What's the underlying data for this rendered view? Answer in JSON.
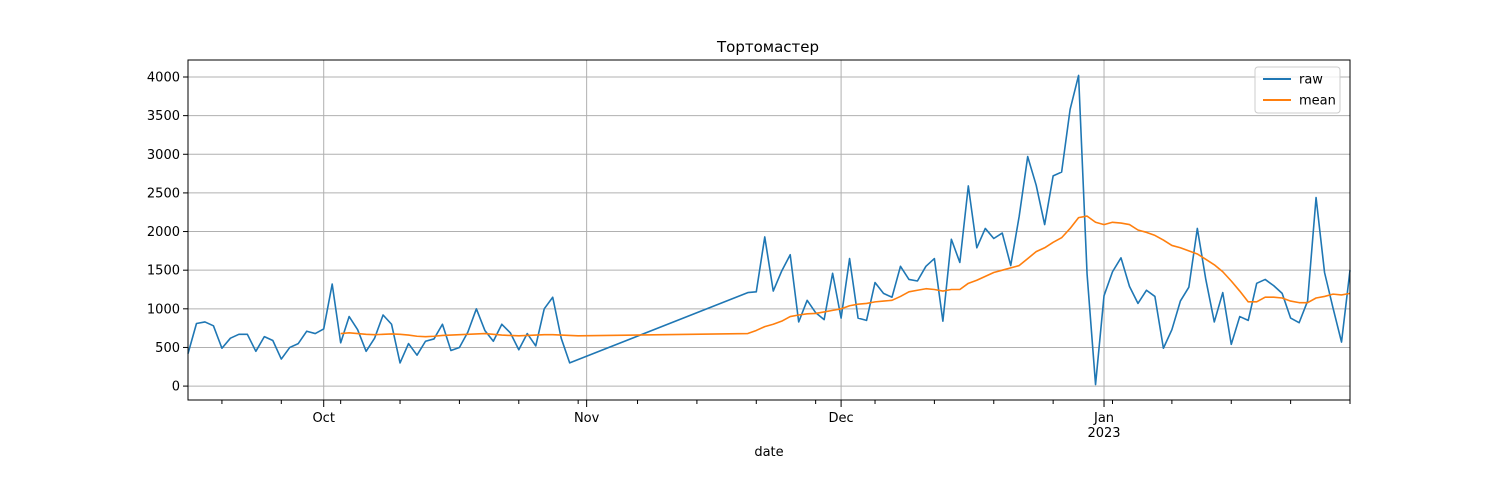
{
  "chart_data": {
    "type": "line",
    "title": "Тортомастер",
    "xlabel": "date",
    "ylabel": "",
    "x_range": [
      "2022-09-15",
      "2023-01-30"
    ],
    "ylim": [
      -180,
      4220
    ],
    "y_ticks": [
      0,
      500,
      1000,
      1500,
      2000,
      2500,
      3000,
      3500,
      4000
    ],
    "x_major_ticks": [
      {
        "date": "2022-10-01",
        "label": "Oct"
      },
      {
        "date": "2022-11-01",
        "label": "Nov"
      },
      {
        "date": "2022-12-01",
        "label": "Dec"
      },
      {
        "date": "2023-01-01",
        "label": "Jan",
        "sublabel": "2023"
      }
    ],
    "x_minor_ticks": [
      "2022-09-19",
      "2022-09-26",
      "2022-10-03",
      "2022-10-10",
      "2022-10-17",
      "2022-10-24",
      "2022-10-31",
      "2022-11-07",
      "2022-11-14",
      "2022-11-21",
      "2022-11-28",
      "2022-12-05",
      "2022-12-12",
      "2022-12-19",
      "2022-12-26",
      "2023-01-02",
      "2023-01-09",
      "2023-01-16",
      "2023-01-23",
      "2023-01-30"
    ],
    "grid": true,
    "legend_position": "top-right",
    "colors": {
      "raw": "#1f77b4",
      "mean": "#ff7f0e"
    },
    "series": [
      {
        "name": "raw",
        "points": [
          [
            "2022-09-15",
            420
          ],
          [
            "2022-09-16",
            810
          ],
          [
            "2022-09-17",
            830
          ],
          [
            "2022-09-18",
            780
          ],
          [
            "2022-09-19",
            490
          ],
          [
            "2022-09-20",
            620
          ],
          [
            "2022-09-21",
            670
          ],
          [
            "2022-09-22",
            670
          ],
          [
            "2022-09-23",
            450
          ],
          [
            "2022-09-24",
            640
          ],
          [
            "2022-09-25",
            590
          ],
          [
            "2022-09-26",
            350
          ],
          [
            "2022-09-27",
            500
          ],
          [
            "2022-09-28",
            550
          ],
          [
            "2022-09-29",
            710
          ],
          [
            "2022-09-30",
            680
          ],
          [
            "2022-10-01",
            740
          ],
          [
            "2022-10-02",
            1320
          ],
          [
            "2022-10-03",
            560
          ],
          [
            "2022-10-04",
            900
          ],
          [
            "2022-10-05",
            730
          ],
          [
            "2022-10-06",
            450
          ],
          [
            "2022-10-07",
            620
          ],
          [
            "2022-10-08",
            920
          ],
          [
            "2022-10-09",
            800
          ],
          [
            "2022-10-10",
            300
          ],
          [
            "2022-10-11",
            550
          ],
          [
            "2022-10-12",
            400
          ],
          [
            "2022-10-13",
            580
          ],
          [
            "2022-10-14",
            610
          ],
          [
            "2022-10-15",
            800
          ],
          [
            "2022-10-16",
            460
          ],
          [
            "2022-10-17",
            500
          ],
          [
            "2022-10-18",
            700
          ],
          [
            "2022-10-19",
            1000
          ],
          [
            "2022-10-20",
            720
          ],
          [
            "2022-10-21",
            580
          ],
          [
            "2022-10-22",
            800
          ],
          [
            "2022-10-23",
            690
          ],
          [
            "2022-10-24",
            470
          ],
          [
            "2022-10-25",
            680
          ],
          [
            "2022-10-26",
            520
          ],
          [
            "2022-10-27",
            1000
          ],
          [
            "2022-10-28",
            1150
          ],
          [
            "2022-10-29",
            620
          ],
          [
            "2022-10-30",
            300
          ],
          [
            "2022-11-20",
            1210
          ],
          [
            "2022-11-21",
            1220
          ],
          [
            "2022-11-22",
            1930
          ],
          [
            "2022-11-23",
            1230
          ],
          [
            "2022-11-24",
            1490
          ],
          [
            "2022-11-25",
            1700
          ],
          [
            "2022-11-26",
            830
          ],
          [
            "2022-11-27",
            1110
          ],
          [
            "2022-11-28",
            950
          ],
          [
            "2022-11-29",
            860
          ],
          [
            "2022-11-30",
            1460
          ],
          [
            "2022-12-01",
            880
          ],
          [
            "2022-12-02",
            1650
          ],
          [
            "2022-12-03",
            880
          ],
          [
            "2022-12-04",
            850
          ],
          [
            "2022-12-05",
            1340
          ],
          [
            "2022-12-06",
            1200
          ],
          [
            "2022-12-07",
            1150
          ],
          [
            "2022-12-08",
            1550
          ],
          [
            "2022-12-09",
            1380
          ],
          [
            "2022-12-10",
            1360
          ],
          [
            "2022-12-11",
            1550
          ],
          [
            "2022-12-12",
            1650
          ],
          [
            "2022-12-13",
            840
          ],
          [
            "2022-12-14",
            1900
          ],
          [
            "2022-12-15",
            1600
          ],
          [
            "2022-12-16",
            2590
          ],
          [
            "2022-12-17",
            1790
          ],
          [
            "2022-12-18",
            2040
          ],
          [
            "2022-12-19",
            1910
          ],
          [
            "2022-12-20",
            1980
          ],
          [
            "2022-12-21",
            1560
          ],
          [
            "2022-12-22",
            2200
          ],
          [
            "2022-12-23",
            2970
          ],
          [
            "2022-12-24",
            2600
          ],
          [
            "2022-12-25",
            2090
          ],
          [
            "2022-12-26",
            2720
          ],
          [
            "2022-12-27",
            2770
          ],
          [
            "2022-12-28",
            3580
          ],
          [
            "2022-12-29",
            4020
          ],
          [
            "2022-12-30",
            1450
          ],
          [
            "2022-12-31",
            20
          ],
          [
            "2023-01-01",
            1170
          ],
          [
            "2023-01-02",
            1480
          ],
          [
            "2023-01-03",
            1660
          ],
          [
            "2023-01-04",
            1290
          ],
          [
            "2023-01-05",
            1070
          ],
          [
            "2023-01-06",
            1240
          ],
          [
            "2023-01-07",
            1160
          ],
          [
            "2023-01-08",
            490
          ],
          [
            "2023-01-09",
            730
          ],
          [
            "2023-01-10",
            1100
          ],
          [
            "2023-01-11",
            1280
          ],
          [
            "2023-01-12",
            2040
          ],
          [
            "2023-01-13",
            1380
          ],
          [
            "2023-01-14",
            830
          ],
          [
            "2023-01-15",
            1210
          ],
          [
            "2023-01-16",
            540
          ],
          [
            "2023-01-17",
            900
          ],
          [
            "2023-01-18",
            850
          ],
          [
            "2023-01-19",
            1330
          ],
          [
            "2023-01-20",
            1380
          ],
          [
            "2023-01-21",
            1300
          ],
          [
            "2023-01-22",
            1200
          ],
          [
            "2023-01-23",
            880
          ],
          [
            "2023-01-24",
            820
          ],
          [
            "2023-01-25",
            1100
          ],
          [
            "2023-01-26",
            2440
          ],
          [
            "2023-01-27",
            1470
          ],
          [
            "2023-01-28",
            1010
          ],
          [
            "2023-01-29",
            570
          ],
          [
            "2023-01-30",
            1500
          ]
        ]
      },
      {
        "name": "mean",
        "points": [
          [
            "2022-10-03",
            680
          ],
          [
            "2022-10-04",
            690
          ],
          [
            "2022-10-05",
            680
          ],
          [
            "2022-10-06",
            670
          ],
          [
            "2022-10-07",
            665
          ],
          [
            "2022-10-08",
            670
          ],
          [
            "2022-10-09",
            675
          ],
          [
            "2022-10-10",
            670
          ],
          [
            "2022-10-11",
            660
          ],
          [
            "2022-10-12",
            645
          ],
          [
            "2022-10-13",
            640
          ],
          [
            "2022-10-14",
            645
          ],
          [
            "2022-10-15",
            655
          ],
          [
            "2022-10-16",
            660
          ],
          [
            "2022-10-17",
            665
          ],
          [
            "2022-10-18",
            670
          ],
          [
            "2022-10-19",
            675
          ],
          [
            "2022-10-20",
            680
          ],
          [
            "2022-10-21",
            670
          ],
          [
            "2022-10-22",
            660
          ],
          [
            "2022-10-23",
            655
          ],
          [
            "2022-10-24",
            650
          ],
          [
            "2022-10-25",
            655
          ],
          [
            "2022-10-26",
            660
          ],
          [
            "2022-10-27",
            665
          ],
          [
            "2022-10-28",
            665
          ],
          [
            "2022-10-29",
            660
          ],
          [
            "2022-10-30",
            655
          ],
          [
            "2022-10-31",
            650
          ],
          [
            "2022-11-20",
            680
          ],
          [
            "2022-11-21",
            720
          ],
          [
            "2022-11-22",
            770
          ],
          [
            "2022-11-23",
            800
          ],
          [
            "2022-11-24",
            840
          ],
          [
            "2022-11-25",
            900
          ],
          [
            "2022-11-26",
            920
          ],
          [
            "2022-11-27",
            935
          ],
          [
            "2022-11-28",
            940
          ],
          [
            "2022-11-29",
            960
          ],
          [
            "2022-11-30",
            980
          ],
          [
            "2022-12-01",
            1000
          ],
          [
            "2022-12-02",
            1040
          ],
          [
            "2022-12-03",
            1060
          ],
          [
            "2022-12-04",
            1070
          ],
          [
            "2022-12-05",
            1090
          ],
          [
            "2022-12-06",
            1100
          ],
          [
            "2022-12-07",
            1110
          ],
          [
            "2022-12-08",
            1160
          ],
          [
            "2022-12-09",
            1220
          ],
          [
            "2022-12-10",
            1240
          ],
          [
            "2022-12-11",
            1260
          ],
          [
            "2022-12-12",
            1250
          ],
          [
            "2022-12-13",
            1230
          ],
          [
            "2022-12-14",
            1250
          ],
          [
            "2022-12-15",
            1250
          ],
          [
            "2022-12-16",
            1330
          ],
          [
            "2022-12-17",
            1370
          ],
          [
            "2022-12-18",
            1420
          ],
          [
            "2022-12-19",
            1470
          ],
          [
            "2022-12-20",
            1500
          ],
          [
            "2022-12-21",
            1530
          ],
          [
            "2022-12-22",
            1560
          ],
          [
            "2022-12-23",
            1650
          ],
          [
            "2022-12-24",
            1740
          ],
          [
            "2022-12-25",
            1790
          ],
          [
            "2022-12-26",
            1860
          ],
          [
            "2022-12-27",
            1920
          ],
          [
            "2022-12-28",
            2040
          ],
          [
            "2022-12-29",
            2180
          ],
          [
            "2022-12-30",
            2200
          ],
          [
            "2022-12-31",
            2120
          ],
          [
            "2023-01-01",
            2090
          ],
          [
            "2023-01-02",
            2120
          ],
          [
            "2023-01-03",
            2110
          ],
          [
            "2023-01-04",
            2090
          ],
          [
            "2023-01-05",
            2020
          ],
          [
            "2023-01-06",
            1990
          ],
          [
            "2023-01-07",
            1950
          ],
          [
            "2023-01-08",
            1890
          ],
          [
            "2023-01-09",
            1820
          ],
          [
            "2023-01-10",
            1790
          ],
          [
            "2023-01-11",
            1750
          ],
          [
            "2023-01-12",
            1710
          ],
          [
            "2023-01-13",
            1640
          ],
          [
            "2023-01-14",
            1570
          ],
          [
            "2023-01-15",
            1480
          ],
          [
            "2023-01-16",
            1360
          ],
          [
            "2023-01-17",
            1230
          ],
          [
            "2023-01-18",
            1090
          ],
          [
            "2023-01-19",
            1090
          ],
          [
            "2023-01-20",
            1150
          ],
          [
            "2023-01-21",
            1150
          ],
          [
            "2023-01-22",
            1140
          ],
          [
            "2023-01-23",
            1100
          ],
          [
            "2023-01-24",
            1080
          ],
          [
            "2023-01-25",
            1080
          ],
          [
            "2023-01-26",
            1140
          ],
          [
            "2023-01-27",
            1160
          ],
          [
            "2023-01-28",
            1190
          ],
          [
            "2023-01-29",
            1180
          ],
          [
            "2023-01-30",
            1200
          ]
        ]
      }
    ]
  }
}
